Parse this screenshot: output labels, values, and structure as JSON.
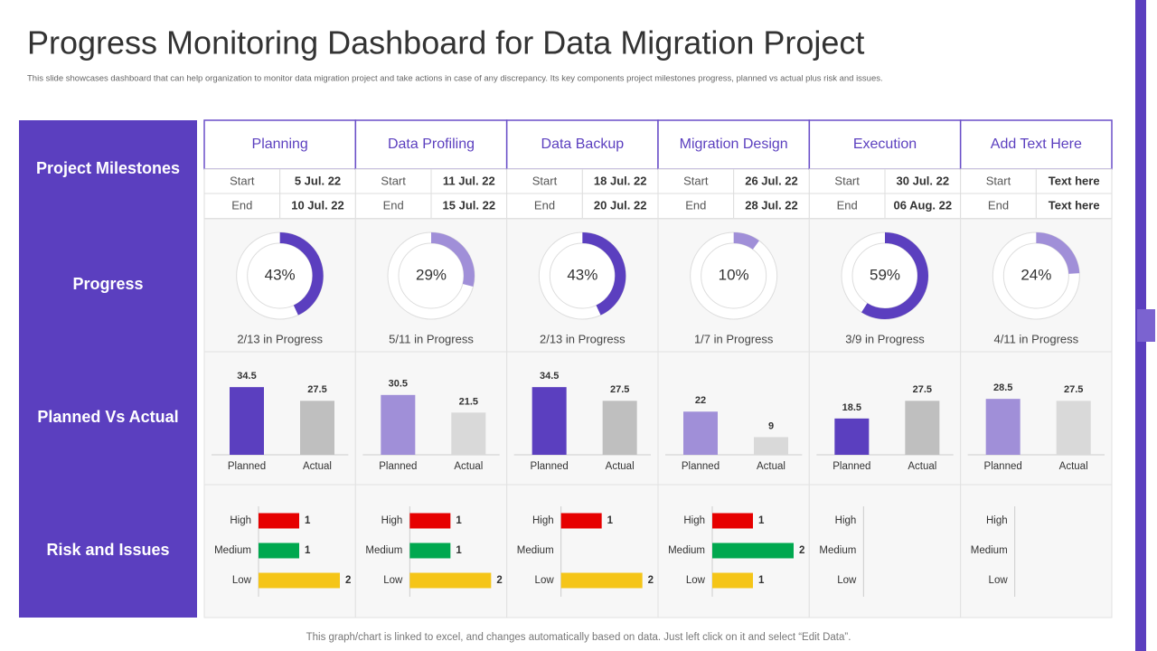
{
  "title": "Progress Monitoring Dashboard for Data Migration Project",
  "subtitle": "This slide showcases dashboard that can help organization to monitor data migration project and take actions in case of any discrepancy. Its key components project milestones progress, planned vs actual plus risk and issues.",
  "row_labels": [
    "Project Milestones",
    "Progress",
    "Planned Vs Actual",
    "Risk and Issues"
  ],
  "milestone_labels": [
    "Start",
    "End"
  ],
  "bar_labels": [
    "Planned",
    "Actual"
  ],
  "risk_levels": [
    "High",
    "Medium",
    "Low"
  ],
  "risk_colors": [
    "#e60000",
    "#00a84f",
    "#f5c518"
  ],
  "columns": [
    {
      "name": "Planning",
      "start": "5 Jul. 22",
      "end": "10 Jul. 22",
      "progress": 43,
      "progress_label": "43%",
      "progress_text": "2/13 in Progress",
      "progress_color": "#5b3fbf",
      "planned": 34.5,
      "actual": 27.5,
      "planned_color": "#5b3fbf",
      "actual_color": "#bfbfbf",
      "risks": [
        1,
        1,
        2
      ]
    },
    {
      "name": "Data Profiling",
      "start": "11 Jul. 22",
      "end": "15 Jul. 22",
      "progress": 29,
      "progress_label": "29%",
      "progress_text": "5/11 in Progress",
      "progress_color": "#a08fd8",
      "planned": 30.5,
      "actual": 21.5,
      "planned_color": "#a08fd8",
      "actual_color": "#d9d9d9",
      "risks": [
        1,
        1,
        2
      ]
    },
    {
      "name": "Data Backup",
      "start": "18 Jul. 22",
      "end": "20 Jul. 22",
      "progress": 43,
      "progress_label": "43%",
      "progress_text": "2/13 in Progress",
      "progress_color": "#5b3fbf",
      "planned": 34.5,
      "actual": 27.5,
      "planned_color": "#5b3fbf",
      "actual_color": "#bfbfbf",
      "risks": [
        1,
        null,
        2
      ]
    },
    {
      "name": "Migration Design",
      "start": "26 Jul. 22",
      "end": "28 Jul. 22",
      "progress": 10,
      "progress_label": "10%",
      "progress_text": "1/7 in Progress",
      "progress_color": "#a08fd8",
      "planned": 22,
      "actual": 9,
      "planned_color": "#a08fd8",
      "actual_color": "#d9d9d9",
      "risks": [
        1,
        2,
        1
      ]
    },
    {
      "name": "Execution",
      "start": "30 Jul. 22",
      "end": "06 Aug. 22",
      "progress": 59,
      "progress_label": "59%",
      "progress_text": "3/9 in Progress",
      "progress_color": "#5b3fbf",
      "planned": 18.5,
      "actual": 27.5,
      "planned_color": "#5b3fbf",
      "actual_color": "#bfbfbf",
      "risks": [
        null,
        null,
        null
      ]
    },
    {
      "name": "Add Text Here",
      "start": "Text here",
      "end": "Text here",
      "progress": 24,
      "progress_label": "24%",
      "progress_text": "4/11 in Progress",
      "progress_color": "#a08fd8",
      "planned": 28.5,
      "actual": 27.5,
      "planned_color": "#a08fd8",
      "actual_color": "#d9d9d9",
      "risks": [
        null,
        null,
        null
      ]
    }
  ],
  "footer": "This graph/chart is linked to excel, and changes automatically based on data. Just left click on it and select “Edit Data”."
}
